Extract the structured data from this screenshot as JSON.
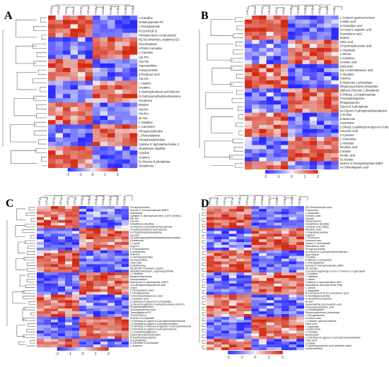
{
  "palette": {
    "low": "#2b2bff",
    "mid": "#f4f4f8",
    "high": "#d42a12",
    "accent": "#f4a84a"
  },
  "chart_data": [
    {
      "type": "heatmap",
      "panel_label": "A",
      "columns": [
        "GSF-1",
        "GSF-2",
        "GSF-3",
        "GSF-4",
        "GSF-5",
        "GSF-6",
        "GSSF-1",
        "GSSF-2",
        "GSSF-3",
        "GSSF-4",
        "GSSF-5",
        "GSSF-6"
      ],
      "rows": [
        "L-Citrulline",
        "N-Methylamide-PC",
        "L-Pyroglutamine",
        "PC(18:0/18:3)",
        "Pentadecanoic Acid(Azelaic)",
        "N2,N2-dimethyl-L-arginine(AD)",
        "Glucoheptose",
        "l-Prolyl-l-norvaline",
        "L-Carnitine",
        "Lys-Pro",
        "Arg-Ala",
        "Hypoxanthine",
        "Acetylcarnitine",
        "4-Pyridoxic acid",
        "Ala-Gln",
        "L-Alanine",
        "Creatine",
        "4-Hydroxybutanoic acid lactone",
        "O-Carboxymethyltrimethylamine",
        "Creatinine",
        "Betaine",
        "Val-Ser",
        "His-Pro",
        "Ile-Ala",
        "L-Histidine",
        "L-Carnosine",
        "Phosphorylcholine",
        "L-Phenylalanine",
        "Phosphatidylcholine",
        "Cytidine 5'-diphosphocholine C",
        "Glutathione disulfide",
        "Cytidine",
        "Guanine",
        "D-Glucose 6-phosphate",
        "Glutathione"
      ],
      "scale": {
        "ticks": [
          "-2",
          "-1",
          "0",
          "1",
          "2"
        ],
        "min": -2,
        "max": 2
      }
    },
    {
      "type": "heatmap",
      "panel_label": "B",
      "columns": [
        "GSF-1",
        "GSF-2",
        "GSF-3",
        "GSF-4",
        "GSF-5",
        "GSF-6",
        "GSSF-1",
        "GSSF-2",
        "GSSF-3",
        "GSSF-4",
        "GSSF-5",
        "GSSF-6",
        "GSSF-7"
      ],
      "rows": [
        "L-Gutamic gamma-lactone",
        "L-Malic acid",
        "2-Oxoadipic acid",
        "N-Acetyl-L-aspartic acid",
        "Pantothenic acid",
        "Inosine",
        "Oleic acid",
        "3-Hydroxydecanoic acid",
        "L-Aspartate",
        "L-Serine",
        "L-Carnitine",
        "Aconitic acid",
        "Isoleucine",
        "(S)-2-aminobutanoic acid",
        "L-Citrulline",
        "Adenine",
        "D-Mannose 1-phosphate",
        "Dihydroxyacetone phosphate",
        "alpha-D-Glucose 1-phosphate",
        "D-Ribose 1,5-bisphosphate",
        "3-Ketosphingosine",
        "Phosphoserine",
        "Glycerol 3-phosphate",
        "sn-Glycero-3-phosphoethanolamine",
        "L-Proline",
        "D-Mannose",
        "Guanosine",
        "2-Oleoyl-1-palmitoyl-sn-glycero-3-phosphocholine(PC(16:0/18:1))",
        "Uracanic acid",
        "L-Cysteine",
        "L-Carnosine",
        "L-Histidine",
        "Nicotinic acid",
        "Creatine",
        "Ferulic acid",
        "DL-lactate",
        "Inosine 5'-monophosphate (IMP)",
        "m-Chlorohippuric acid"
      ],
      "scale": {
        "ticks": [
          "-2",
          "-1",
          "0",
          "1",
          "2"
        ],
        "min": -2,
        "max": 2
      }
    },
    {
      "type": "heatmap",
      "panel_label": "C",
      "columns": [
        "GSF-1",
        "GSF-2",
        "GSF-3",
        "GSF-4",
        "GSF-5",
        "GSF-6",
        "GSSF-1",
        "GSSF-2",
        "GSSF-3",
        "GSSF-4",
        "GSSF-5",
        "GSSF-6",
        "GSSF-7"
      ],
      "rows": [
        "Phosphocreatine",
        "Inosine 5'-monophosphate (IMP)",
        "Adenosine",
        "Cytidine 5'-diphosphocholine (CDP-choline)",
        "Ala-Ser",
        "Gly-Ser",
        "Glutathione disulfide",
        "sn-Glycerol 3-phosphoethanolamine",
        "4-Hydroxybutanoic acid lactone",
        "O-Phosphorylethanolamine",
        "Lys-Asn",
        "3-Hydroxypropyldimethylammonium-lactam",
        "Glutathione",
        "L-Lysine",
        "Arg-Pro",
        "L-Phenylalanine",
        "L-Methionine",
        "Adenine",
        "L-Palmitoylcarnitine",
        "Deoxycarnitine",
        "Oleic acid",
        "D-Methionine",
        "N6,N6,N6-Trimethyl-L-lysine",
        "N6GA(D-dimethyl-L-arginine)(ADMA)",
        "L-Carnitine",
        "Betaine/adenosine",
        "Acetylcarnitine",
        "Adenosine 5'-diphosphate (ADP)",
        "4-(4-Ethylphenyl)butanoic acid",
        "Uracil",
        "L-Pyroglutamic acid",
        "L-Pyroglutamine",
        "4-Aminomethylbenzoic acid",
        "L-Glutamic acid",
        "1-Stearoyl-sn-glycerol-3-phosphate",
        "2-Oleoyl-sn-glycero-3-phosphocholine (GOPC)",
        "Phosphatidylcholine",
        "Tricosapeptenoic acid",
        "Triacylglycerol-PC",
        "PC(16:0/18:1)",
        "Phorbol 12-myristate",
        "1-Palmitoyl-sn-glycero-3-phosphoethanolamine",
        "1-Palmitoyl-sn-glycero-3-phosphocholine",
        "1-Palmitoyl-2-hydroxy-sn-glycero-3-phosphoethanolamine",
        "1-Palmitoyl-sn-glycero-3-phosphoserine",
        "1,2-Dipalmitoylglycerol",
        "Glycerylphosphorylcholine",
        "Phosphoethanolamine",
        "Pyroxidylethyl",
        "D-Ribulose 5-phosphate",
        "L-Arginine"
      ],
      "scale": {
        "ticks": [
          "-2",
          "-1",
          "0",
          "1",
          "2"
        ],
        "min": -2,
        "max": 2
      }
    },
    {
      "type": "heatmap",
      "panel_label": "D",
      "columns": [
        "GSF-1",
        "GSF-2",
        "GSF-3",
        "GSF-4",
        "GSF-5",
        "GSF-6",
        "GSSF-1",
        "GSSF-2",
        "GSSF-3",
        "GSSF-4",
        "GSSF-5",
        "GSSF-6",
        "GSSF-7"
      ],
      "rows": [
        "(R)-Rebaudioside acid",
        "Guanosine",
        "L-Aspartate",
        "Fumaric acid",
        "Taurine",
        "Pyridoxamine",
        "Glutathione disulfide",
        "Cer(d18:1/16:1(9Z))",
        "Nicotinic acid",
        "L-Palmitoylcarnitine",
        "Cytidine",
        "L-Threonine",
        "Uracanic acid",
        "Glycerol 3-phosphate",
        "Pantothenic acid",
        "Phosphocreatine",
        "sn-Glycerol 3-phosphoethanolamine",
        "Spermidine",
        "Creatine",
        "D-Ribose 1-phosphate",
        "L-Phenylalanine",
        "Inosine 5'-monophosphate (IMP)",
        "DL-lactate",
        "3-(4-Hydroxyphenyl)-2-oxo-17-beta-ol-17-glucoside",
        "L-Cysteine",
        "L-Histidine",
        "L-Valine",
        "2-Methyl-3-hydroxybutyric acid",
        "Arachidonic acid (peroxide free)",
        "L-Serine",
        "L-Aspartate",
        "N-Lactoyl-N-N-N-(Cu) pentanoic acid",
        "N-Acetylglucosamine",
        "N-Acetylmannosamine",
        "Ile-Ser",
        "alpha-Methyl-(3)-cinnamic acid",
        "N-Acetylneuraminic acid",
        "L-Homoarginine",
        "Dihydroxyacetone phosphate",
        "L-Pyroglutamine",
        "4-Amino acid",
        "L-Gutamic gamma-lactone",
        "Oleic acid",
        "L-Aspartate",
        "Lansteroxine",
        "L-Citrulline",
        "Myoinositol",
        "1-Palmitoyl-sn-glycero-3-phosphoethanolamine",
        "Oleic acid",
        "Creatine",
        "3-Hydroxypropionic acid (lactamic acid)",
        "Acetylcarnitine"
      ],
      "scale": {
        "ticks": [
          "-2",
          "-1",
          "0",
          "1",
          "2"
        ],
        "min": -2,
        "max": 2
      }
    }
  ]
}
